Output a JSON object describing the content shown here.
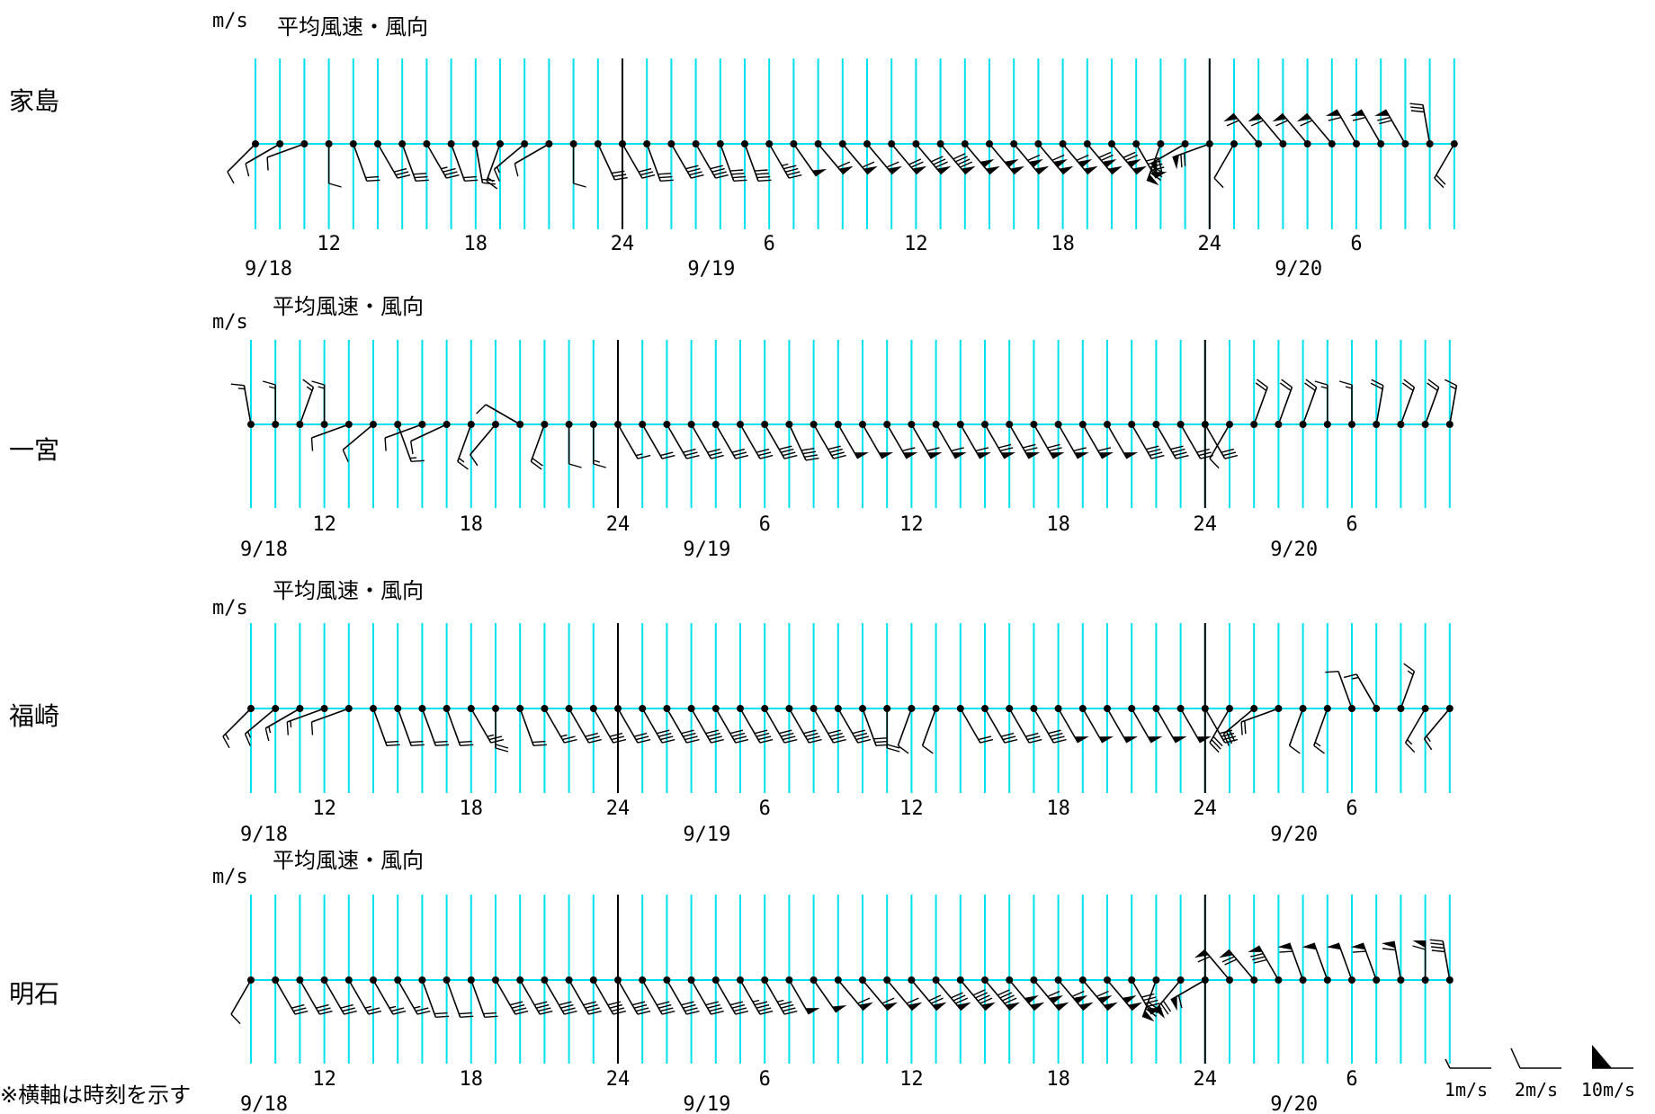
{
  "footnote": "※横軸は時刻を示す",
  "chart_data": {
    "type": "wind-barb",
    "unit": "m/s",
    "title": "平均風速・風向",
    "tick_labels": [
      "12",
      "18",
      "24",
      "6",
      "12",
      "18",
      "24",
      "6"
    ],
    "date_labels": [
      "9/18",
      "9/19",
      "9/20"
    ],
    "legend": [
      "1m/s",
      "2m/s",
      "10m/s"
    ],
    "stations": [
      {
        "name": "家島",
        "points": [
          [
            2,
            225
          ],
          [
            2,
            240
          ],
          [
            2,
            250
          ],
          [
            2,
            180
          ],
          [
            4,
            160
          ],
          [
            6,
            150
          ],
          [
            6,
            160
          ],
          [
            7,
            150
          ],
          [
            4,
            160
          ],
          [
            4,
            170
          ],
          [
            3,
            200
          ],
          [
            3,
            230
          ],
          [
            2,
            240
          ],
          [
            2,
            180
          ],
          [
            6,
            155
          ],
          [
            6,
            150
          ],
          [
            6,
            160
          ],
          [
            8,
            150
          ],
          [
            8,
            150
          ],
          [
            8,
            160
          ],
          [
            8,
            160
          ],
          [
            9,
            150
          ],
          [
            10,
            145
          ],
          [
            12,
            140
          ],
          [
            12,
            140
          ],
          [
            12,
            140
          ],
          [
            14,
            140
          ],
          [
            16,
            140
          ],
          [
            18,
            140
          ],
          [
            20,
            140
          ],
          [
            20,
            140
          ],
          [
            22,
            140
          ],
          [
            22,
            140
          ],
          [
            22,
            140
          ],
          [
            24,
            140
          ],
          [
            24,
            140
          ],
          [
            18,
            150
          ],
          [
            16,
            200
          ],
          [
            12,
            240
          ],
          [
            14,
            250
          ],
          [
            2,
            210
          ],
          [
            12,
            320
          ],
          [
            12,
            320
          ],
          [
            12,
            320
          ],
          [
            12,
            320
          ],
          [
            12,
            330
          ],
          [
            12,
            330
          ],
          [
            14,
            330
          ],
          [
            6,
            350
          ],
          [
            4,
            210
          ]
        ]
      },
      {
        "name": "一宮",
        "points": [
          [
            3,
            350
          ],
          [
            3,
            0
          ],
          [
            3,
            20
          ],
          [
            3,
            0
          ],
          [
            2,
            250
          ],
          [
            2,
            230
          ],
          [
            3,
            160
          ],
          [
            2,
            250
          ],
          [
            2,
            245
          ],
          [
            3,
            200
          ],
          [
            2,
            220
          ],
          [
            2,
            300
          ],
          [
            4,
            200
          ],
          [
            2,
            180
          ],
          [
            3,
            180
          ],
          [
            3,
            150
          ],
          [
            4,
            150
          ],
          [
            6,
            150
          ],
          [
            6,
            150
          ],
          [
            6,
            150
          ],
          [
            6,
            150
          ],
          [
            8,
            150
          ],
          [
            8,
            155
          ],
          [
            8,
            150
          ],
          [
            10,
            150
          ],
          [
            10,
            150
          ],
          [
            12,
            150
          ],
          [
            12,
            150
          ],
          [
            12,
            150
          ],
          [
            12,
            150
          ],
          [
            14,
            150
          ],
          [
            14,
            150
          ],
          [
            14,
            150
          ],
          [
            12,
            150
          ],
          [
            12,
            150
          ],
          [
            10,
            150
          ],
          [
            8,
            150
          ],
          [
            8,
            150
          ],
          [
            6,
            150
          ],
          [
            6,
            150
          ],
          [
            2,
            210
          ],
          [
            4,
            20
          ],
          [
            4,
            20
          ],
          [
            4,
            20
          ],
          [
            3,
            0
          ],
          [
            3,
            0
          ],
          [
            4,
            10
          ],
          [
            4,
            20
          ],
          [
            4,
            20
          ],
          [
            3,
            10
          ]
        ]
      },
      {
        "name": "福崎",
        "points": [
          [
            3,
            225
          ],
          [
            3,
            230
          ],
          [
            3,
            240
          ],
          [
            3,
            250
          ],
          [
            2,
            250
          ],
          [
            4,
            160
          ],
          [
            4,
            160
          ],
          [
            4,
            160
          ],
          [
            4,
            160
          ],
          [
            5,
            150
          ],
          [
            4,
            180
          ],
          [
            4,
            160
          ],
          [
            5,
            150
          ],
          [
            6,
            150
          ],
          [
            6,
            150
          ],
          [
            6,
            150
          ],
          [
            8,
            150
          ],
          [
            8,
            150
          ],
          [
            8,
            150
          ],
          [
            8,
            150
          ],
          [
            8,
            150
          ],
          [
            8,
            150
          ],
          [
            8,
            150
          ],
          [
            8,
            150
          ],
          [
            8,
            150
          ],
          [
            6,
            160
          ],
          [
            4,
            180
          ],
          [
            2,
            200
          ],
          [
            2,
            200
          ],
          [
            4,
            150
          ],
          [
            6,
            150
          ],
          [
            6,
            150
          ],
          [
            8,
            150
          ],
          [
            10,
            150
          ],
          [
            10,
            150
          ],
          [
            10,
            150
          ],
          [
            10,
            150
          ],
          [
            10,
            150
          ],
          [
            10,
            150
          ],
          [
            8,
            150
          ],
          [
            6,
            210
          ],
          [
            6,
            230
          ],
          [
            4,
            250
          ],
          [
            2,
            200
          ],
          [
            3,
            200
          ],
          [
            2,
            340
          ],
          [
            3,
            330
          ],
          [
            3,
            20
          ],
          [
            3,
            210
          ],
          [
            3,
            220
          ]
        ]
      },
      {
        "name": "明石",
        "points": [
          [
            2,
            210
          ],
          [
            6,
            150
          ],
          [
            6,
            150
          ],
          [
            6,
            150
          ],
          [
            5,
            150
          ],
          [
            5,
            150
          ],
          [
            5,
            150
          ],
          [
            4,
            160
          ],
          [
            4,
            160
          ],
          [
            4,
            160
          ],
          [
            8,
            150
          ],
          [
            8,
            150
          ],
          [
            8,
            150
          ],
          [
            8,
            150
          ],
          [
            8,
            150
          ],
          [
            8,
            150
          ],
          [
            8,
            150
          ],
          [
            8,
            150
          ],
          [
            8,
            150
          ],
          [
            8,
            150
          ],
          [
            9,
            150
          ],
          [
            9,
            150
          ],
          [
            10,
            150
          ],
          [
            10,
            145
          ],
          [
            12,
            140
          ],
          [
            12,
            140
          ],
          [
            12,
            140
          ],
          [
            14,
            140
          ],
          [
            16,
            140
          ],
          [
            18,
            140
          ],
          [
            18,
            140
          ],
          [
            20,
            140
          ],
          [
            22,
            140
          ],
          [
            22,
            140
          ],
          [
            22,
            140
          ],
          [
            20,
            140
          ],
          [
            18,
            150
          ],
          [
            16,
            200
          ],
          [
            14,
            220
          ],
          [
            12,
            240
          ],
          [
            12,
            320
          ],
          [
            14,
            320
          ],
          [
            16,
            330
          ],
          [
            12,
            340
          ],
          [
            10,
            340
          ],
          [
            10,
            340
          ],
          [
            12,
            340
          ],
          [
            12,
            350
          ],
          [
            12,
            0
          ],
          [
            8,
            350
          ]
        ]
      }
    ]
  }
}
